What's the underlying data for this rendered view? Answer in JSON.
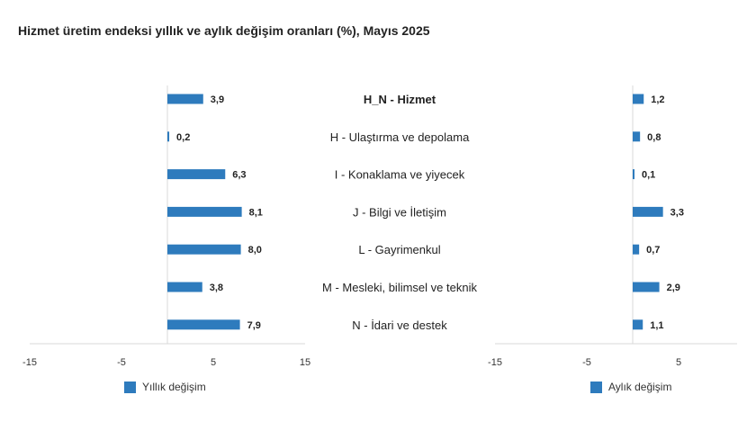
{
  "title": "Hizmet üretim endeksi yıllık ve aylık değişim oranları (%), Mayıs 2025",
  "colors": {
    "bar": "#2e7bbd",
    "axis": "#d9d9d9"
  },
  "chart_data": [
    {
      "type": "bar",
      "orientation": "horizontal",
      "categories": [
        "H_N - Hizmet",
        "H - Ulaştırma ve depolama",
        "I - Konaklama ve yiyecek",
        "J - Bilgi ve İletişim",
        "L - Gayrimenkul",
        "M - Mesleki, bilimsel ve teknik",
        "N - İdari ve destek"
      ],
      "series": [
        {
          "name": "Yıllık değişim",
          "values": [
            3.9,
            0.2,
            6.3,
            8.1,
            8.0,
            3.8,
            7.9
          ],
          "labels": [
            "3,9",
            "0,2",
            "6,3",
            "8,1",
            "8,0",
            "3,8",
            "7,9"
          ]
        }
      ],
      "xlim": [
        -15,
        15
      ],
      "xticks": [
        -15,
        -5,
        5,
        15
      ],
      "legend": "bottom-left"
    },
    {
      "type": "bar",
      "orientation": "horizontal",
      "categories": [
        "H_N - Hizmet",
        "H - Ulaştırma ve depolama",
        "I - Konaklama ve yiyecek",
        "J - Bilgi ve İletişim",
        "L - Gayrimenkul",
        "M - Mesleki, bilimsel ve teknik",
        "N - İdari ve destek"
      ],
      "series": [
        {
          "name": "Aylık değişim",
          "values": [
            1.2,
            0.8,
            0.1,
            3.3,
            0.7,
            2.9,
            1.1
          ],
          "labels": [
            "1,2",
            "0,8",
            "0,1",
            "3,3",
            "0,7",
            "2,9",
            "1,1"
          ]
        }
      ],
      "xlim": [
        -15,
        15
      ],
      "xticks": [
        -15,
        -5,
        5
      ],
      "legend": "bottom-left"
    }
  ]
}
